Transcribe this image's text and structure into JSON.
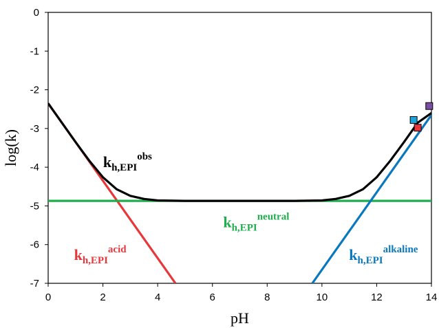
{
  "chart_data": {
    "type": "line",
    "title": "",
    "xlabel": "pH",
    "ylabel": "log(k)",
    "xlim": [
      0,
      14
    ],
    "ylim": [
      -7,
      0
    ],
    "x_ticks": [
      0,
      2,
      4,
      6,
      8,
      10,
      12,
      14
    ],
    "y_ticks": [
      0,
      -1,
      -2,
      -3,
      -4,
      -5,
      -6,
      -7
    ],
    "grid": false,
    "legend": "none",
    "series": [
      {
        "key": "obs",
        "color": "#000000",
        "x": [
          0,
          0.5,
          1,
          1.5,
          2,
          2.5,
          3,
          3.5,
          4,
          5,
          6,
          7,
          8,
          9,
          10,
          10.5,
          11,
          11.5,
          12,
          12.5,
          13,
          13.5,
          14
        ],
        "y": [
          -2.35,
          -2.85,
          -3.35,
          -3.83,
          -4.26,
          -4.57,
          -4.74,
          -4.82,
          -4.86,
          -4.87,
          -4.87,
          -4.87,
          -4.87,
          -4.87,
          -4.86,
          -4.82,
          -4.74,
          -4.57,
          -4.26,
          -3.83,
          -3.35,
          -2.85,
          -2.6
        ]
      },
      {
        "key": "acid",
        "color": "#e8373a",
        "x": [
          0,
          4.65
        ],
        "y": [
          -2.35,
          -7
        ]
      },
      {
        "key": "neutral",
        "color": "#1fad4d",
        "x": [
          0,
          14
        ],
        "y": [
          -4.87,
          -4.87
        ]
      },
      {
        "key": "alkaline",
        "color": "#0a78be",
        "x": [
          9.65,
          14
        ],
        "y": [
          -7,
          -2.65
        ]
      }
    ],
    "points": [
      {
        "x": 13.35,
        "y": -2.78,
        "color": "#1aa4dc"
      },
      {
        "x": 13.5,
        "y": -2.98,
        "color": "#e8373a"
      },
      {
        "x": 13.92,
        "y": -2.42,
        "color": "#7b4ea3"
      }
    ],
    "annotations": [
      {
        "key": "obs",
        "base": "k",
        "sub": "h,EPI",
        "sup": "obs",
        "color": "#000000",
        "x": 2.9,
        "y": -4.0
      },
      {
        "key": "neutral",
        "base": "k",
        "sub": "h,EPI",
        "sup": "neutral",
        "color": "#1fad4d",
        "x": 7.6,
        "y": -5.55
      },
      {
        "key": "acid",
        "base": "k",
        "sub": "h,EPI",
        "sup": "acid",
        "color": "#e8373a",
        "x": 1.9,
        "y": -6.4
      },
      {
        "key": "alkaline",
        "base": "k",
        "sub": "h,EPI",
        "sup": "alkaline",
        "color": "#0a78be",
        "x": 12.25,
        "y": -6.4
      }
    ]
  }
}
